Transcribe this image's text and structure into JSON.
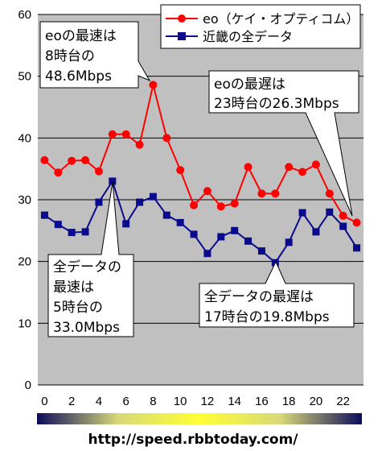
{
  "chart_data": {
    "type": "line",
    "ylim": [
      0,
      60
    ],
    "yticks": [
      0,
      10,
      20,
      30,
      40,
      50,
      60
    ],
    "x": [
      0,
      1,
      2,
      3,
      4,
      5,
      6,
      7,
      8,
      9,
      10,
      11,
      12,
      13,
      14,
      15,
      16,
      17,
      18,
      19,
      20,
      21,
      22,
      23
    ],
    "xtick_labels": [
      "0",
      "2",
      "4",
      "6",
      "8",
      "10",
      "12",
      "14",
      "16",
      "18",
      "20",
      "22"
    ],
    "grid": "horizontal",
    "legend_position": "top-right",
    "series": [
      {
        "name": "eo（ケイ・オプティコム）",
        "color": "#ff0000",
        "marker": "circle",
        "values": [
          36.4,
          34.4,
          36.3,
          36.4,
          34.6,
          40.6,
          40.6,
          38.9,
          48.6,
          40.0,
          34.8,
          29.1,
          31.4,
          28.9,
          29.4,
          35.3,
          31.0,
          31.0,
          35.3,
          34.5,
          35.7,
          31.0,
          27.4,
          26.3
        ]
      },
      {
        "name": "近畿の全データ",
        "color": "#0a0a8c",
        "marker": "square",
        "values": [
          27.5,
          26.0,
          24.7,
          24.8,
          29.6,
          33.0,
          26.1,
          29.6,
          30.5,
          27.5,
          26.3,
          24.4,
          21.3,
          24.0,
          25.0,
          23.3,
          21.7,
          19.8,
          23.1,
          27.9,
          24.8,
          28.0,
          25.7,
          22.2
        ]
      }
    ],
    "annotations": [
      {
        "lines": [
          "eoの最速は",
          "8時台の",
          "48.6Mbps"
        ]
      },
      {
        "lines": [
          "eoの最遅は",
          "23時台の26.3Mbps"
        ]
      },
      {
        "lines": [
          "全データの",
          "最速は",
          "5時台の",
          "33.0Mbps"
        ]
      },
      {
        "lines": [
          "全データの最遅は",
          "17時台の19.8Mbps"
        ]
      }
    ],
    "time_bar": {
      "colors": [
        "#0d0d5a",
        "#d8d87a",
        "#ffff33",
        "#d8d87a",
        "#0d0d5a"
      ]
    },
    "source_text": "http://speed.rbbtoday.com/"
  }
}
